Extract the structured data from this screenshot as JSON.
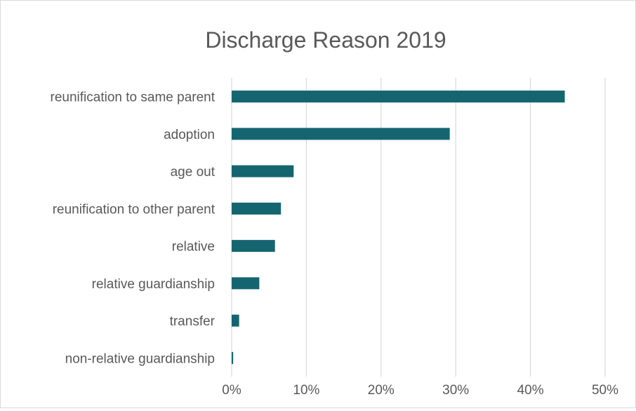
{
  "chart_data": {
    "type": "bar",
    "orientation": "horizontal",
    "title": "Discharge Reason 2019",
    "xlabel": "",
    "ylabel": "",
    "categories": [
      "reunification to same parent",
      "adoption",
      "age out",
      "reunification to other parent",
      "relative",
      "relative guardianship",
      "transfer",
      "non-relative guardianship"
    ],
    "values": [
      44.6,
      29.2,
      8.3,
      6.6,
      5.8,
      3.7,
      1.0,
      0.2
    ],
    "xlim": [
      0,
      50
    ],
    "x_ticks": [
      "0%",
      "10%",
      "20%",
      "30%",
      "40%",
      "50%"
    ],
    "x_tick_values": [
      0,
      10,
      20,
      30,
      40,
      50
    ],
    "grid": true,
    "legend": "none",
    "bar_color": "#156570",
    "grid_color": "#d9d9d9"
  }
}
